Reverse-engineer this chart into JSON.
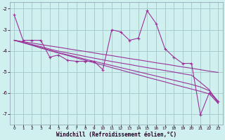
{
  "xlabel": "Windchill (Refroidissement éolien,°C)",
  "bg_color": "#d0f0f0",
  "grid_color": "#a8cccc",
  "line_color": "#993399",
  "x_data": [
    0,
    1,
    2,
    3,
    4,
    5,
    6,
    7,
    8,
    9,
    10,
    11,
    12,
    13,
    14,
    15,
    16,
    17,
    18,
    19,
    20,
    21,
    22,
    23
  ],
  "y_main": [
    -2.3,
    -3.5,
    -3.5,
    -3.5,
    -4.3,
    -4.2,
    -4.45,
    -4.5,
    -4.5,
    -4.5,
    -4.9,
    -3.0,
    -3.1,
    -3.5,
    -3.4,
    -2.1,
    -2.7,
    -3.9,
    -4.3,
    -4.6,
    -4.6,
    -7.05,
    -6.0,
    -6.4
  ],
  "y_reg1": [
    -3.5,
    -3.57,
    -3.63,
    -3.7,
    -3.77,
    -3.83,
    -3.9,
    -3.97,
    -4.03,
    -4.1,
    -4.17,
    -4.23,
    -4.3,
    -4.37,
    -4.43,
    -4.5,
    -4.57,
    -4.63,
    -4.7,
    -4.77,
    -4.83,
    -4.9,
    -4.97,
    -5.03
  ],
  "y_reg2": [
    -3.5,
    -3.6,
    -3.7,
    -3.8,
    -3.92,
    -4.02,
    -4.1,
    -4.18,
    -4.27,
    -4.35,
    -4.43,
    -4.51,
    -4.58,
    -4.65,
    -4.73,
    -4.8,
    -4.87,
    -4.94,
    -5.01,
    -5.09,
    -5.16,
    -5.5,
    -5.85,
    -6.5
  ],
  "y_reg3": [
    -3.5,
    -3.62,
    -3.74,
    -3.87,
    -3.99,
    -4.11,
    -4.22,
    -4.34,
    -4.45,
    -4.57,
    -4.68,
    -4.8,
    -4.91,
    -5.03,
    -5.14,
    -5.26,
    -5.37,
    -5.48,
    -5.6,
    -5.71,
    -5.82,
    -5.93,
    -6.05,
    -6.5
  ],
  "y_reg4": [
    -3.5,
    -3.6,
    -3.72,
    -3.85,
    -3.97,
    -4.09,
    -4.19,
    -4.29,
    -4.4,
    -4.5,
    -4.6,
    -4.7,
    -4.8,
    -4.9,
    -5.0,
    -5.1,
    -5.2,
    -5.3,
    -5.4,
    -5.5,
    -5.6,
    -5.72,
    -5.9,
    -6.4
  ],
  "ylim": [
    -7.5,
    -1.7
  ],
  "xlim": [
    -0.5,
    23.5
  ],
  "yticks": [
    -7,
    -6,
    -5,
    -4,
    -3,
    -2
  ],
  "xticks": [
    0,
    1,
    2,
    3,
    4,
    5,
    6,
    7,
    8,
    9,
    10,
    11,
    12,
    13,
    14,
    15,
    16,
    17,
    18,
    19,
    20,
    21,
    22,
    23
  ]
}
